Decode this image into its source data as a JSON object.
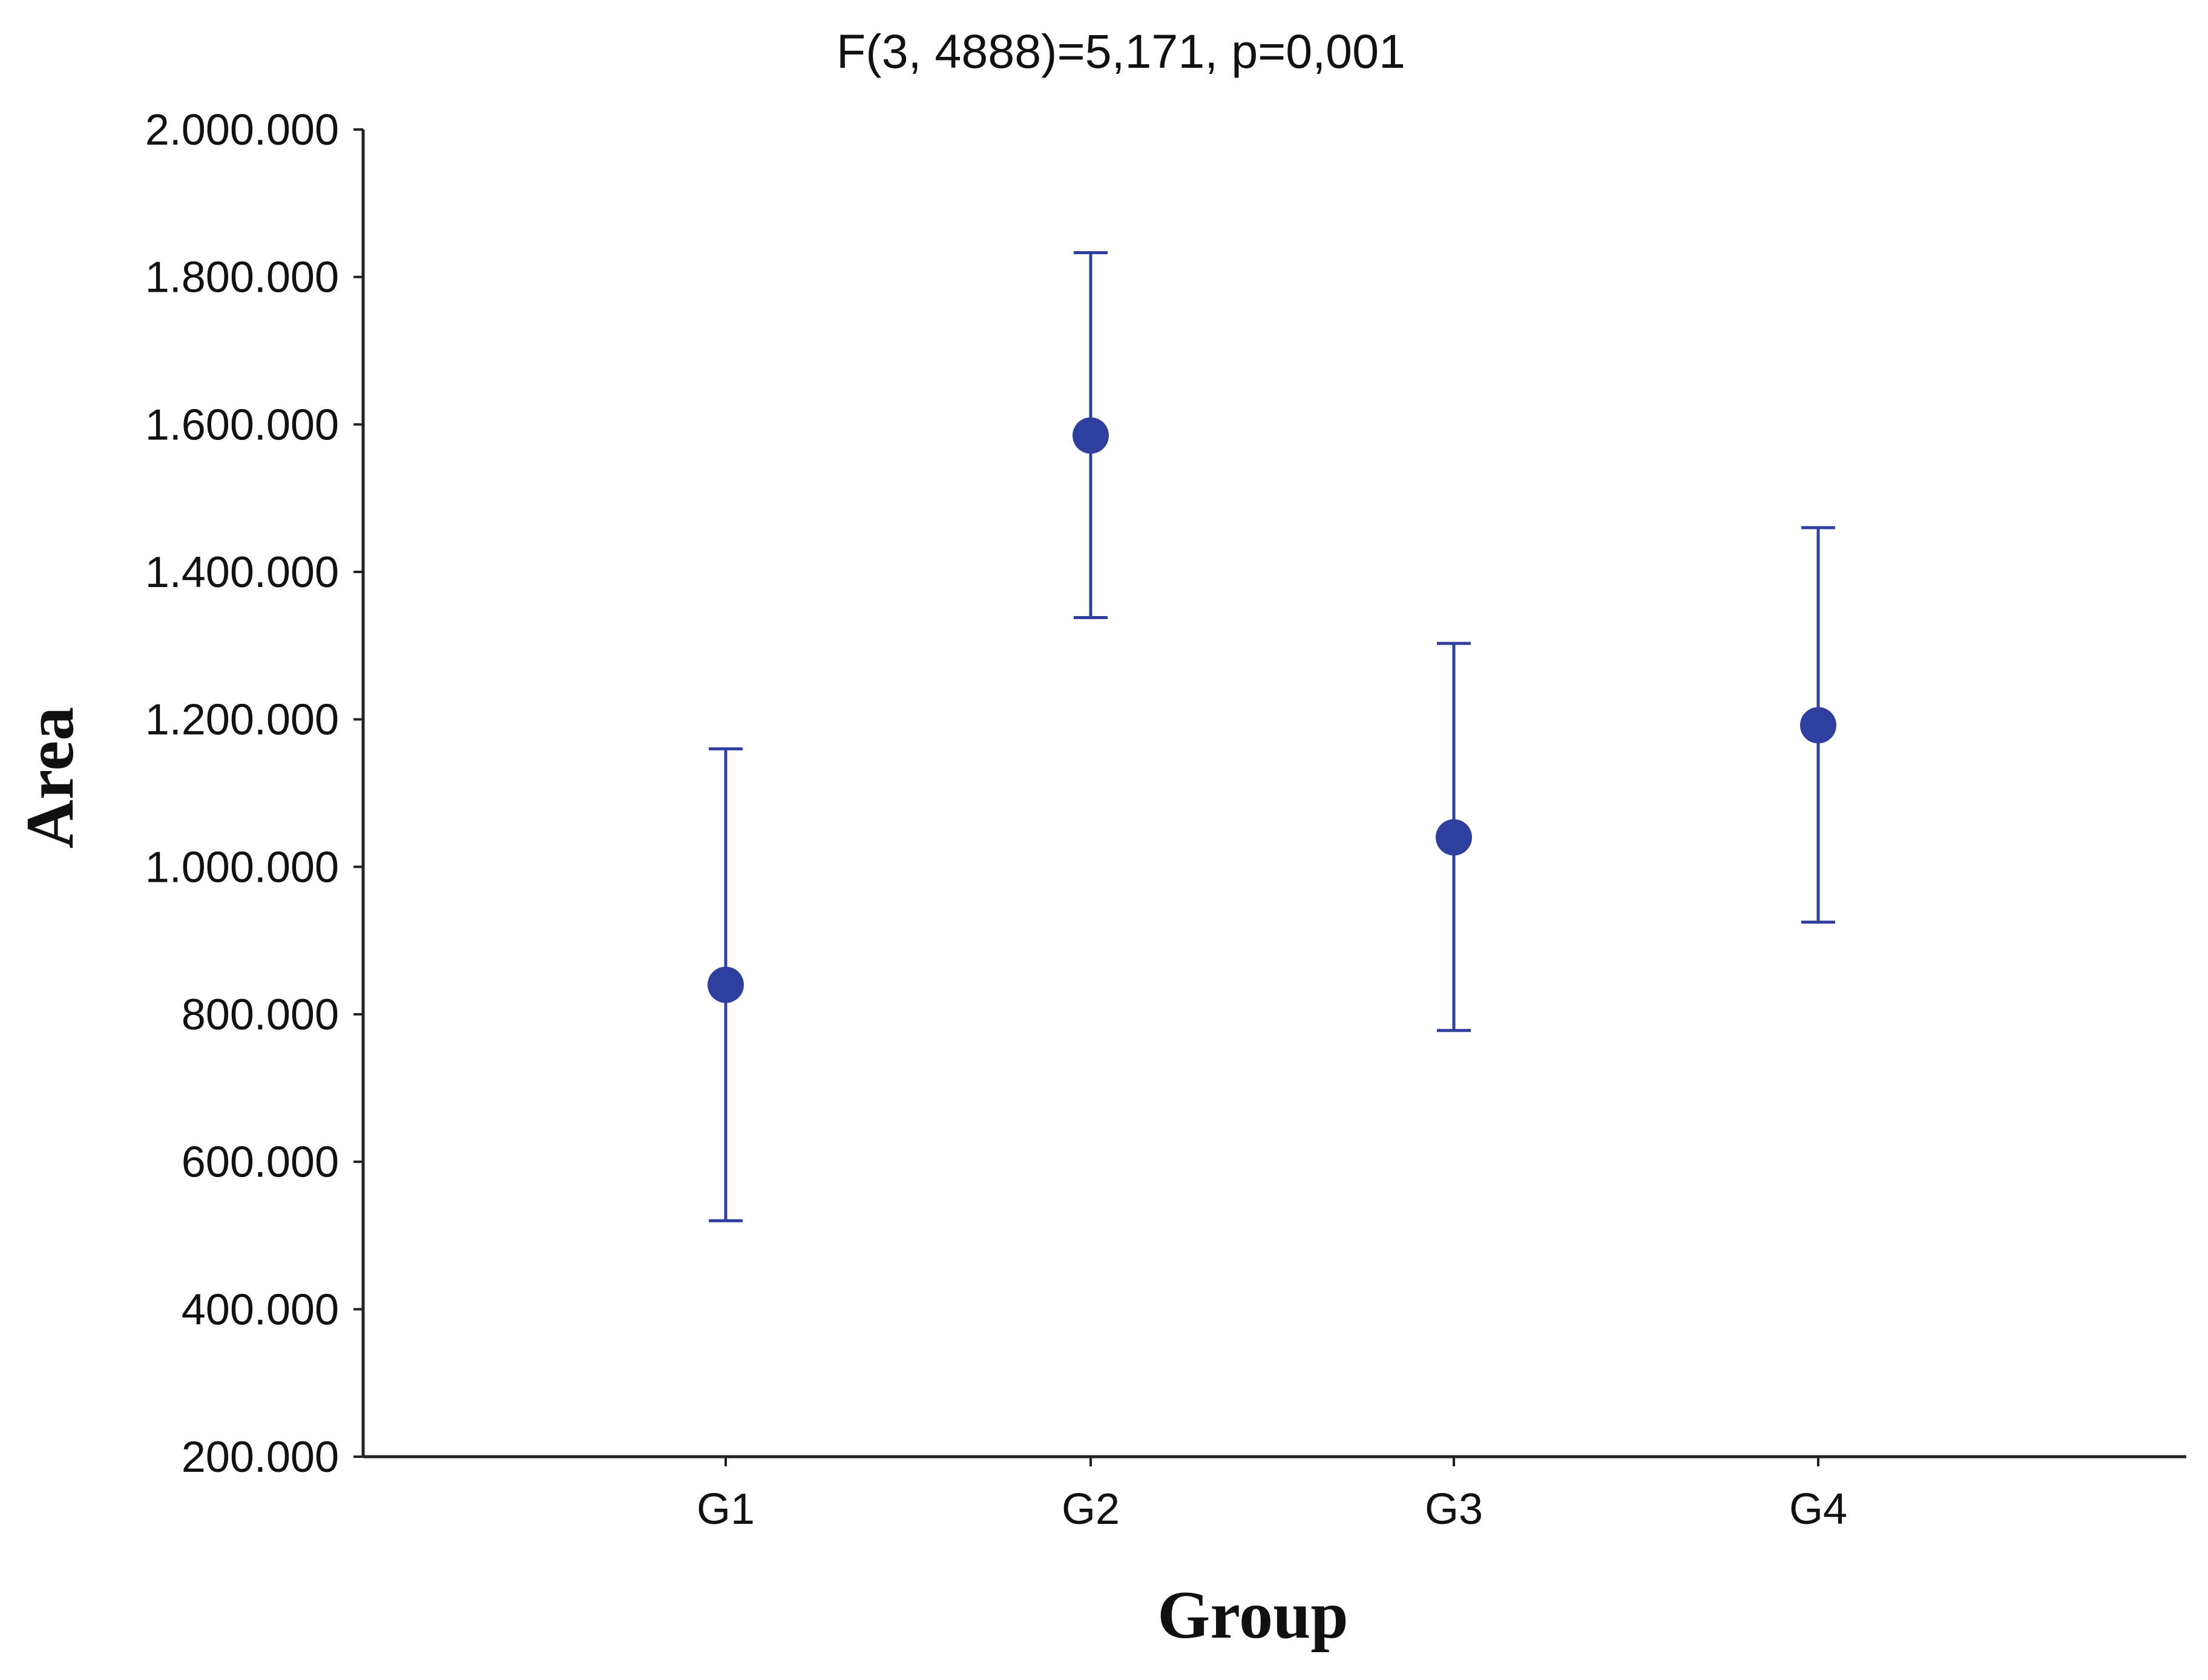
{
  "colors": {
    "series": "#2f3f9e",
    "axis": "#222222"
  },
  "chart_data": {
    "type": "scatter",
    "subtype": "means-with-error-bars",
    "title": "F(3, 4888)=5,171, p=0,001",
    "xlabel": "Group",
    "ylabel": "Area",
    "categories": [
      "G1",
      "G2",
      "G3",
      "G4"
    ],
    "series": [
      {
        "mean": [
          840000,
          1585000,
          1040000,
          1192000
        ],
        "lower": [
          520000,
          1338000,
          778000,
          925000
        ],
        "upper": [
          1160000,
          1833000,
          1303000,
          1460000
        ]
      }
    ],
    "ylim": [
      200000,
      2000000
    ],
    "yticks": [
      200000,
      400000,
      600000,
      800000,
      1000000,
      1200000,
      1400000,
      1600000,
      1800000,
      2000000
    ],
    "ytick_labels": [
      "200.000",
      "400.000",
      "600.000",
      "800.000",
      "1.000.000",
      "1.200.000",
      "1.400.000",
      "1.600.000",
      "1.800.000",
      "2.000.000"
    ],
    "grid": false,
    "legend": "none"
  }
}
